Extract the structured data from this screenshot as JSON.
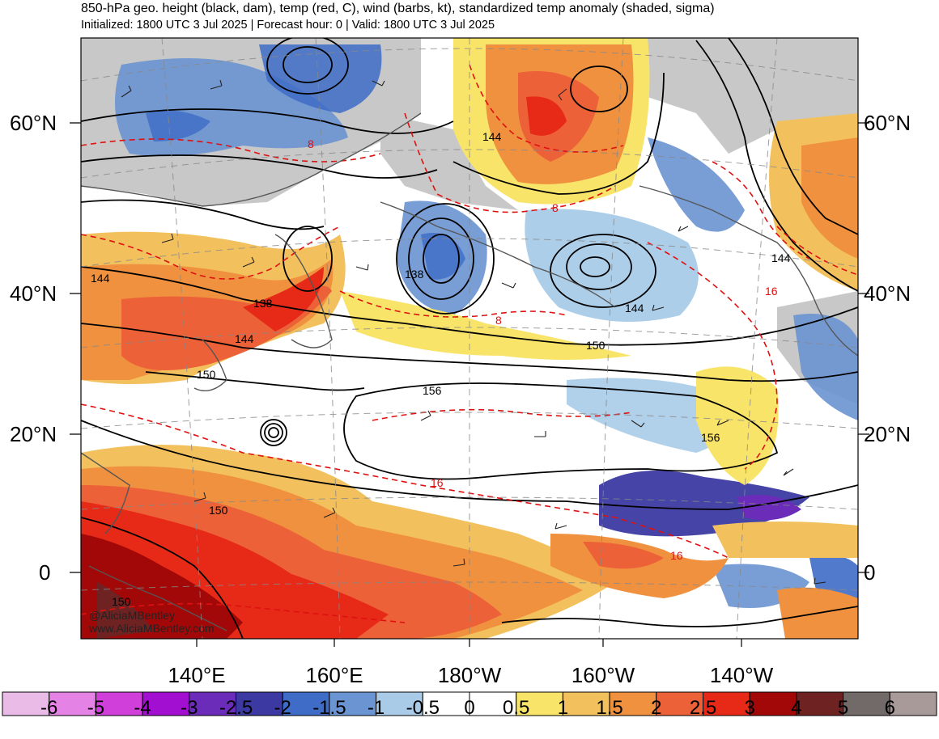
{
  "header": {
    "title": "850-hPa geo. height (black, dam), temp (red, C), wind (barbs, kt), standardized temp anomaly (shaded, sigma)",
    "subtitle": "Initialized: 1800 UTC 3 Jul 2025 | Forecast hour: 0 | Valid: 1800 UTC 3 Jul 2025"
  },
  "axes": {
    "lat_left": [
      "60°N",
      "40°N",
      "20°N",
      "0"
    ],
    "lat_right": [
      "60°N",
      "40°N",
      "20°N",
      "0"
    ],
    "lon": [
      "140°E",
      "160°E",
      "180°W",
      "160°W",
      "140°W"
    ]
  },
  "contour_labels": {
    "height": [
      "144",
      "138",
      "144",
      "150",
      "138",
      "156",
      "150",
      "144",
      "144",
      "156",
      "150",
      "150",
      "144"
    ],
    "temp": [
      "8",
      "8",
      "8",
      "16",
      "16",
      "16"
    ]
  },
  "credit": [
    "@AliciaMBentley",
    "www.AliciaMBentley.com"
  ],
  "colorbar": {
    "labels": [
      "-6",
      "-5",
      "-4",
      "-3",
      "-2.5",
      "-2",
      "-1.5",
      "-1",
      "-0.5",
      "0",
      "0.5",
      "1",
      "1.5",
      "2",
      "2.5",
      "3",
      "4",
      "5",
      "6"
    ],
    "colors": [
      "#ebbbe8",
      "#e482e5",
      "#d13fdb",
      "#a20fd0",
      "#6b2cba",
      "#3c3aa2",
      "#3e6cc7",
      "#6a94d2",
      "#a9cbe8",
      "#ffffff",
      "#ffffff",
      "#f9e46a",
      "#f2c15e",
      "#f0913f",
      "#ec6138",
      "#e62a17",
      "#a30808",
      "#6e2222",
      "#726969",
      "#a89a98"
    ]
  },
  "colors": {
    "land": "#c9c9c9",
    "height_contour": "#000000",
    "temp_contour": "#e01010"
  }
}
